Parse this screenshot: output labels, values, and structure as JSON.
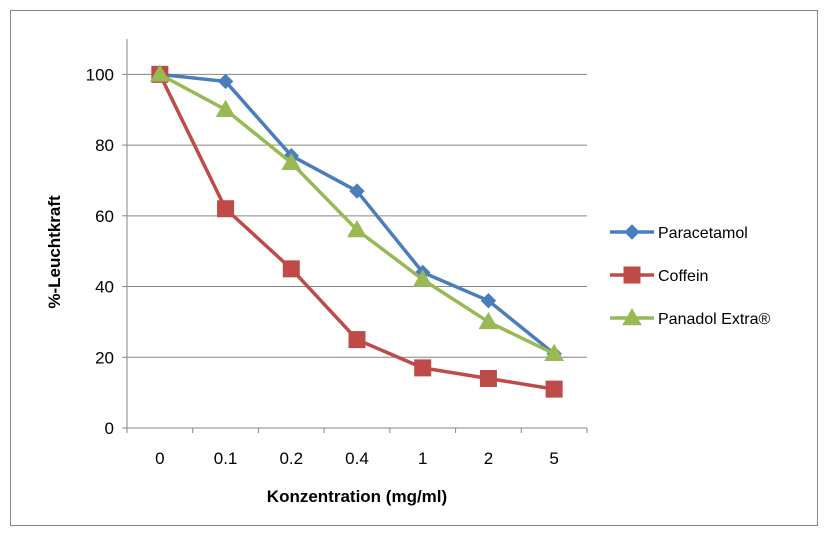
{
  "chart_data": {
    "type": "line",
    "title": "",
    "xlabel": "Konzentration (mg/ml)",
    "ylabel": "%-Leuchtkraft",
    "categories": [
      "0",
      "0.1",
      "0.2",
      "0.4",
      "1",
      "2",
      "5"
    ],
    "ylim": [
      0,
      100
    ],
    "yticks": [
      0,
      20,
      40,
      60,
      80,
      100
    ],
    "grid": true,
    "legend_position": "right",
    "series": [
      {
        "name": "Paracetamol",
        "values": [
          100,
          98,
          77,
          67,
          44,
          36,
          21
        ],
        "color": "#4a7ebb",
        "marker": "diamond"
      },
      {
        "name": "Coffein",
        "values": [
          100,
          62,
          45,
          25,
          17,
          14,
          11
        ],
        "color": "#be4b48",
        "marker": "square"
      },
      {
        "name": "Panadol Extra®",
        "values": [
          100,
          90,
          75,
          56,
          42,
          30,
          21
        ],
        "color": "#98b954",
        "marker": "triangle"
      }
    ]
  }
}
